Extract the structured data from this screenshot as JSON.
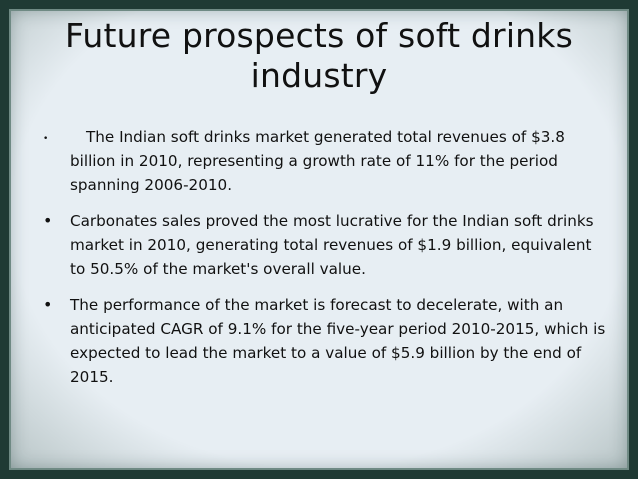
{
  "slide": {
    "title": "Future prospects of soft drinks industry",
    "bullets": [
      {
        "marker": "•",
        "text": "The Indian soft drinks market generated total revenues of $3.8 billion in 2010, representing a growth rate of 11% for the period spanning 2006-2010."
      },
      {
        "marker": "•",
        "text": "Carbonates sales proved the most lucrative for the Indian soft drinks market in 2010, generating total revenues of $1.9 billion, equivalent to 50.5% of the market's overall value."
      },
      {
        "marker": "•",
        "text": "The performance of the market is forecast to decelerate, with an anticipated CAGR of 9.1% for the five-year period 2010-2015, which is expected to lead the market to a value of $5.9 billion by the end of 2015."
      }
    ]
  }
}
